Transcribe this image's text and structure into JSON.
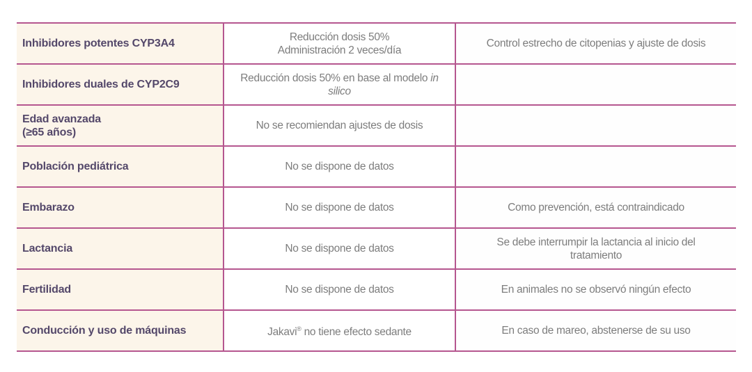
{
  "table": {
    "rows": [
      {
        "label": "Inhibidores potentes CYP3A4",
        "label_line2": "",
        "dose": "Reducción dosis 50%",
        "dose_line2": "Administración 2 veces/día",
        "dose_italic": "",
        "dose_italic_line2": "",
        "note": "Control estrecho de citopenias y ajuste de dosis",
        "note_line2": ""
      },
      {
        "label": "Inhibidores duales de CYP2C9",
        "label_line2": "",
        "dose": "Reducción dosis 50% en base al modelo ",
        "dose_italic": "in",
        "dose_line2": "",
        "dose_italic_line2": "silico",
        "note": "",
        "note_line2": ""
      },
      {
        "label": "Edad avanzada",
        "label_line2": "(≥65 años)",
        "dose": "No se recomiendan ajustes de dosis",
        "dose_line2": "",
        "dose_italic": "",
        "dose_italic_line2": "",
        "note": "",
        "note_line2": ""
      },
      {
        "label": "Población pediátrica",
        "label_line2": "",
        "dose": "No se dispone de datos",
        "dose_line2": "",
        "dose_italic": "",
        "dose_italic_line2": "",
        "note": "",
        "note_line2": ""
      },
      {
        "label": "Embarazo",
        "label_line2": "",
        "dose": "No se dispone de datos",
        "dose_line2": "",
        "dose_italic": "",
        "dose_italic_line2": "",
        "note": "Como prevención, está contraindicado",
        "note_line2": ""
      },
      {
        "label": "Lactancia",
        "label_line2": "",
        "dose": "No se dispone de datos",
        "dose_line2": "",
        "dose_italic": "",
        "dose_italic_line2": "",
        "note": "Se debe interrumpir la lactancia al inicio del",
        "note_line2": "tratamiento"
      },
      {
        "label": "Fertilidad",
        "label_line2": "",
        "dose": "No se dispone de datos",
        "dose_line2": "",
        "dose_italic": "",
        "dose_italic_line2": "",
        "note": "En animales no se observó ningún efecto",
        "note_line2": ""
      },
      {
        "label": "Conducción y uso de máquinas",
        "label_line2": "",
        "dose": "Jakavi",
        "dose_sup": "®",
        "dose_after_sup": " no tiene efecto sedante",
        "dose_line2": "",
        "dose_italic": "",
        "dose_italic_line2": "",
        "note": "En caso de mareo, abstenerse de su uso",
        "note_line2": ""
      }
    ]
  },
  "colors": {
    "border": "#b5568f",
    "label_bg": "#fcf5ea",
    "label_text": "#54486a",
    "body_text": "#7d7d7d"
  }
}
